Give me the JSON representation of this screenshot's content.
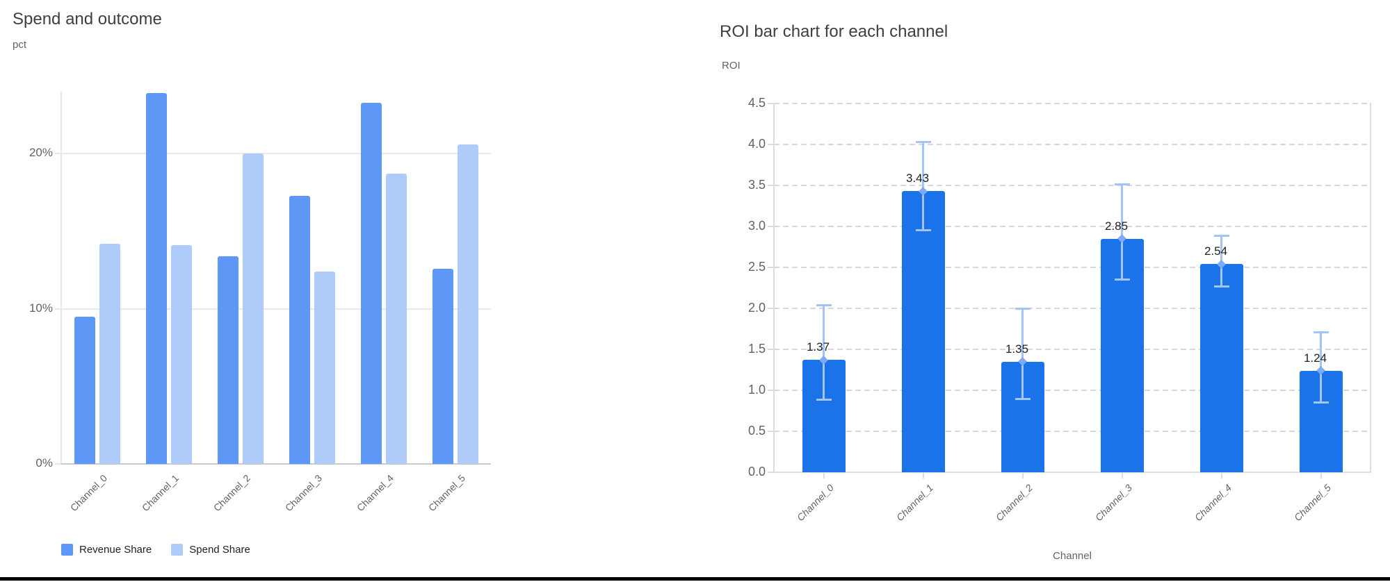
{
  "chart_data": [
    {
      "type": "bar",
      "title": "Spend and outcome",
      "xlabel": "",
      "ylabel": "pct",
      "categories": [
        "Channel_0",
        "Channel_1",
        "Channel_2",
        "Channel_3",
        "Channel_4",
        "Channel_5"
      ],
      "series": [
        {
          "name": "Revenue Share",
          "color": "#5e97f6",
          "values": [
            9.5,
            23.9,
            13.4,
            17.3,
            23.3,
            12.6
          ]
        },
        {
          "name": "Spend Share",
          "color": "#aecbfa",
          "values": [
            14.2,
            14.1,
            20.0,
            12.4,
            18.7,
            20.6
          ]
        }
      ],
      "y_ticks": [
        "0%",
        "10%",
        "20%"
      ],
      "ylim": [
        0,
        24
      ],
      "grid": "solid-horizontal",
      "legend_position": "bottom-left"
    },
    {
      "type": "bar",
      "title": "ROI bar chart for each channel",
      "xlabel": "Channel",
      "ylabel": "ROI",
      "categories": [
        "Channel_0",
        "Channel_1",
        "Channel_2",
        "Channel_3",
        "Channel_4",
        "Channel_5"
      ],
      "values": [
        1.37,
        3.43,
        1.35,
        2.85,
        2.54,
        1.24
      ],
      "data_labels": [
        "1.37",
        "3.43",
        "1.35",
        "2.85",
        "2.54",
        "1.24"
      ],
      "error_low": [
        0.88,
        2.95,
        0.89,
        2.35,
        2.26,
        0.85
      ],
      "error_high": [
        2.04,
        4.03,
        2.0,
        3.52,
        2.89,
        1.71
      ],
      "y_ticks": [
        "0.0",
        "0.5",
        "1.0",
        "1.5",
        "2.0",
        "2.5",
        "3.0",
        "3.5",
        "4.0",
        "4.5"
      ],
      "ylim": [
        0,
        4.5
      ],
      "bar_color": "#1a73e8",
      "error_bar_color": "#a4c4f8",
      "error_marker_color": "#7faaf7",
      "grid": "dashed-horizontal",
      "legend_position": "none"
    }
  ]
}
